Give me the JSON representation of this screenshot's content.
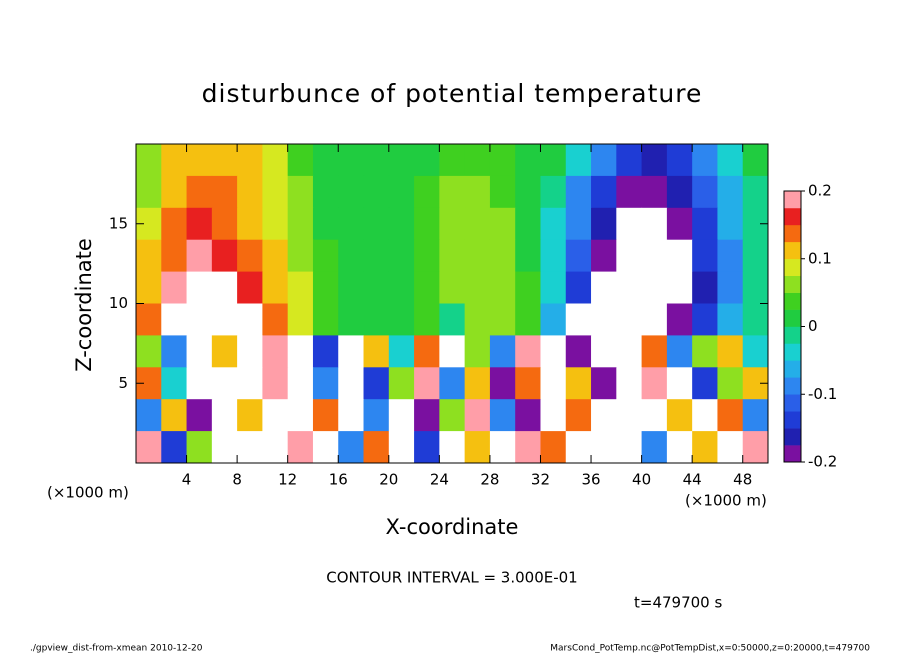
{
  "chart_data": {
    "type": "heatmap",
    "title": "disturbunce of potential temperature",
    "x_label": "X-coordinate",
    "y_label": "Z-coordinate",
    "x_unit": "(×1000 m)",
    "y_unit": "(×1000 m)",
    "annotation": "CONTOUR INTERVAL = 3.000E-01",
    "time_label": "t=479700 s",
    "footer_left": "./gpview_dist-from-xmean  2010-12-20",
    "footer_right": "MarsCond_PotTemp.nc@PotTempDist,x=0:50000,z=0:20000,t=479700",
    "xlim": [
      0,
      50
    ],
    "ylim": [
      0,
      20
    ],
    "xticks": [
      4,
      8,
      12,
      16,
      20,
      24,
      28,
      32,
      36,
      40,
      44,
      48
    ],
    "yticks": [
      5,
      10,
      15
    ],
    "x": [
      1,
      3,
      5,
      7,
      9,
      11,
      13,
      15,
      17,
      19,
      21,
      23,
      25,
      27,
      29,
      31,
      33,
      35,
      37,
      39,
      41,
      43,
      45,
      47,
      49
    ],
    "z": [
      19,
      17,
      15,
      13,
      11,
      9,
      7,
      5,
      3,
      1
    ],
    "values": [
      [
        0.06,
        0.1,
        0.12,
        0.12,
        0.1,
        0.08,
        0.04,
        0.02,
        0.01,
        0.0,
        0.01,
        0.02,
        0.03,
        0.03,
        0.03,
        0.02,
        0.0,
        -0.05,
        -0.1,
        -0.14,
        -0.16,
        -0.14,
        -0.1,
        -0.05,
        0.0
      ],
      [
        0.06,
        0.12,
        0.15,
        0.14,
        0.12,
        0.08,
        0.05,
        0.02,
        0.01,
        0.0,
        0.01,
        0.03,
        0.05,
        0.05,
        0.04,
        0.02,
        -0.02,
        -0.08,
        -0.14,
        -0.18,
        -0.19,
        -0.17,
        -0.12,
        -0.06,
        -0.01
      ],
      [
        0.08,
        0.14,
        0.17,
        0.15,
        0.12,
        0.08,
        0.05,
        0.02,
        0.01,
        0.0,
        0.01,
        0.04,
        0.06,
        0.06,
        0.05,
        0.02,
        -0.03,
        -0.1,
        -0.17,
        -0.21,
        -0.22,
        -0.19,
        -0.14,
        -0.07,
        -0.02
      ],
      [
        0.1,
        0.15,
        0.18,
        0.17,
        0.14,
        0.1,
        0.06,
        0.03,
        0.01,
        0.0,
        0.01,
        0.04,
        0.06,
        0.06,
        0.05,
        0.02,
        -0.04,
        -0.12,
        -0.19,
        -0.25,
        -0.25,
        -0.21,
        -0.15,
        -0.08,
        -0.02
      ],
      [
        0.12,
        0.19,
        0.22,
        0.21,
        0.17,
        0.12,
        0.08,
        0.04,
        0.02,
        0.01,
        0.02,
        0.04,
        0.05,
        0.05,
        0.06,
        0.03,
        -0.05,
        -0.14,
        -0.21,
        -0.25,
        -0.25,
        -0.22,
        -0.16,
        -0.08,
        -0.02
      ],
      [
        0.14,
        0.22,
        0.25,
        0.25,
        0.22,
        0.14,
        0.08,
        0.04,
        0.02,
        0.01,
        0.02,
        0.03,
        -0.01,
        0.05,
        0.06,
        0.04,
        -0.06,
        -0.25,
        -0.25,
        -0.25,
        -0.24,
        -0.2,
        -0.14,
        -0.07,
        -0.02
      ],
      [
        0.05,
        -0.1,
        0.25,
        0.1,
        -0.25,
        0.2,
        0.25,
        -0.15,
        0.25,
        0.1,
        -0.05,
        0.15,
        0.25,
        0.05,
        -0.1,
        0.2,
        -0.25,
        -0.2,
        0.25,
        -0.25,
        0.15,
        -0.1,
        0.05,
        0.1,
        -0.05
      ],
      [
        0.15,
        -0.05,
        0.25,
        -0.25,
        0.25,
        0.18,
        0.25,
        -0.1,
        0.25,
        -0.15,
        0.05,
        0.2,
        -0.1,
        0.1,
        -0.2,
        0.15,
        0.25,
        0.1,
        -0.2,
        0.25,
        0.2,
        0.25,
        -0.15,
        0.05,
        0.12
      ],
      [
        -0.1,
        0.1,
        -0.2,
        0.25,
        0.1,
        0.25,
        -0.25,
        0.15,
        0.25,
        -0.1,
        0.25,
        -0.2,
        0.05,
        0.2,
        -0.1,
        -0.2,
        0.25,
        0.15,
        0.25,
        0.25,
        0.25,
        0.1,
        0.25,
        0.15,
        -0.1
      ],
      [
        0.2,
        -0.15,
        0.05,
        -0.25,
        0.25,
        0.25,
        0.2,
        0.25,
        -0.1,
        0.15,
        0.25,
        -0.15,
        0.25,
        0.1,
        0.25,
        0.2,
        0.15,
        0.25,
        0.25,
        0.25,
        -0.1,
        0.25,
        0.1,
        0.25,
        0.2
      ]
    ],
    "colorbar_lim": [
      -0.2,
      0.2
    ],
    "colorbar_ticks": [
      -0.2,
      -0.1,
      0,
      0.1,
      0.2
    ],
    "colormap": [
      "#7a10a0",
      "#2020b0",
      "#1f3cd6",
      "#2a5fe8",
      "#2d86f0",
      "#24aee8",
      "#19d0d0",
      "#14d28a",
      "#20cc40",
      "#3fd020",
      "#8ee020",
      "#d6e820",
      "#f5c010",
      "#f56a10",
      "#e82020",
      "#ff9ea8"
    ],
    "out_of_range_color": "#ffffff"
  }
}
